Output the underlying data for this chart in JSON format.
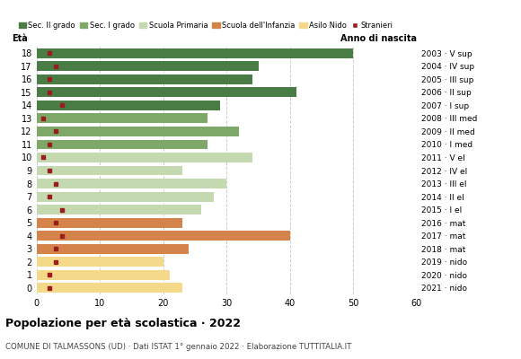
{
  "ages": [
    18,
    17,
    16,
    15,
    14,
    13,
    12,
    11,
    10,
    9,
    8,
    7,
    6,
    5,
    4,
    3,
    2,
    1,
    0
  ],
  "bar_values": [
    50,
    35,
    34,
    41,
    29,
    27,
    32,
    27,
    34,
    23,
    30,
    28,
    26,
    23,
    40,
    24,
    20,
    21,
    23
  ],
  "stranieri": [
    2,
    3,
    2,
    2,
    4,
    1,
    3,
    2,
    1,
    2,
    3,
    2,
    4,
    3,
    4,
    3,
    3,
    2,
    2
  ],
  "anno_di_nascita": [
    "2003 · V sup",
    "2004 · IV sup",
    "2005 · III sup",
    "2006 · II sup",
    "2007 · I sup",
    "2008 · III med",
    "2009 · II med",
    "2010 · I med",
    "2011 · V el",
    "2012 · IV el",
    "2013 · III el",
    "2014 · II el",
    "2015 · I el",
    "2016 · mat",
    "2017 · mat",
    "2018 · mat",
    "2019 · nido",
    "2020 · nido",
    "2021 · nido"
  ],
  "colors": {
    "sec_II": "#4a7c45",
    "sec_I": "#7da868",
    "primaria": "#c5d9b0",
    "infanzia": "#d4844a",
    "nido": "#f5d98a",
    "stranieri": "#9b1c1c"
  },
  "school_type": {
    "18": "sec_II",
    "17": "sec_II",
    "16": "sec_II",
    "15": "sec_II",
    "14": "sec_II",
    "13": "sec_I",
    "12": "sec_I",
    "11": "sec_I",
    "10": "primaria",
    "9": "primaria",
    "8": "primaria",
    "7": "primaria",
    "6": "primaria",
    "5": "infanzia",
    "4": "infanzia",
    "3": "infanzia",
    "2": "nido",
    "1": "nido",
    "0": "nido"
  },
  "legend_labels": [
    "Sec. II grado",
    "Sec. I grado",
    "Scuola Primaria",
    "Scuola dell'Infanzia",
    "Asilo Nido",
    "Stranieri"
  ],
  "legend_colors": [
    "#4a7c45",
    "#7da868",
    "#c5d9b0",
    "#d4844a",
    "#f5d98a",
    "#9b1c1c"
  ],
  "title": "Popolazione per età scolastica · 2022",
  "subtitle": "COMUNE DI TALMASSONS (UD) · Dati ISTAT 1° gennaio 2022 · Elaborazione TUTTITALIA.IT",
  "xlabel_eta": "Età",
  "xlabel_anno": "Anno di nascita",
  "xlim": [
    0,
    60
  ],
  "xticks": [
    0,
    10,
    20,
    30,
    40,
    50,
    60
  ],
  "background_color": "#ffffff",
  "grid_color": "#cccccc"
}
